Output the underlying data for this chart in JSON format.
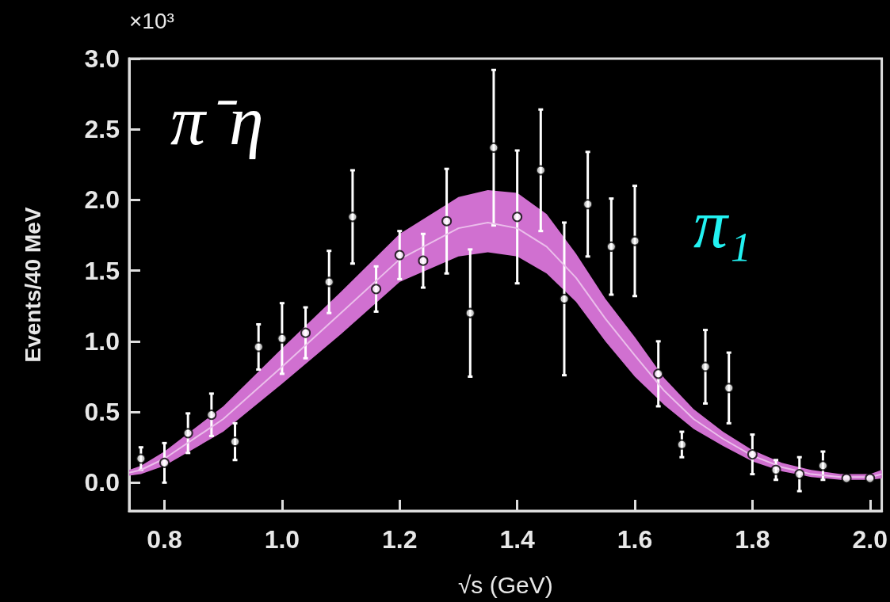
{
  "chart_data": {
    "type": "scatter",
    "xlabel": "√s (GeV)",
    "ylabel": "Events/40 MeV",
    "annotations": [
      "×10³",
      "π⁻η",
      "π₁"
    ],
    "xlim": [
      0.74,
      2.02
    ],
    "xticks": [
      0.8,
      {
        "value": 1,
        "label": "1.0"
      },
      1.2,
      1.4,
      1.6,
      1.8,
      {
        "value": 2,
        "label": "2.0"
      }
    ],
    "ylim": [
      -0.2,
      3.0
    ],
    "yticks": [
      {
        "value": 0,
        "label": "0.0"
      },
      0.5,
      {
        "value": 1,
        "label": "1.0"
      },
      1.5,
      {
        "value": 2,
        "label": "2.0"
      },
      2.5,
      {
        "value": 3,
        "label": "3.0"
      }
    ],
    "series": [
      {
        "type": "line",
        "color": "#ebbeeb",
        "marker": "none",
        "x": [
          0.74,
          0.76,
          0.8,
          0.9,
          1.0,
          1.1,
          1.2,
          1.3,
          1.35,
          1.4,
          1.45,
          1.5,
          1.55,
          1.6,
          1.65,
          1.7,
          1.75,
          1.8,
          1.85,
          1.9,
          1.95,
          2.0,
          2.02
        ],
        "values": [
          0.07,
          0.09,
          0.17,
          0.45,
          0.82,
          1.2,
          1.58,
          1.8,
          1.84,
          1.8,
          1.67,
          1.45,
          1.16,
          0.9,
          0.65,
          0.45,
          0.31,
          0.19,
          0.11,
          0.06,
          0.04,
          0.04,
          0.06
        ],
        "lower": [
          0.05,
          0.06,
          0.12,
          0.36,
          0.7,
          1.05,
          1.42,
          1.6,
          1.63,
          1.6,
          1.48,
          1.28,
          1.0,
          0.75,
          0.55,
          0.38,
          0.26,
          0.15,
          0.08,
          0.04,
          0.02,
          0.02,
          0.03
        ],
        "upper": [
          0.09,
          0.12,
          0.22,
          0.54,
          0.95,
          1.35,
          1.76,
          2.02,
          2.07,
          2.05,
          1.9,
          1.62,
          1.3,
          1.03,
          0.74,
          0.52,
          0.36,
          0.23,
          0.14,
          0.09,
          0.06,
          0.06,
          0.09
        ]
      },
      {
        "color": "#ffffff",
        "marker": "circle",
        "x": [
          0.76,
          0.8,
          0.84,
          0.88,
          0.92,
          0.96,
          1.0,
          1.04,
          1.08,
          1.12,
          1.16,
          1.2,
          1.24,
          1.28,
          1.32,
          1.36,
          1.4,
          1.44,
          1.48,
          1.52,
          1.56,
          1.6,
          1.64,
          1.68,
          1.72,
          1.76,
          1.8,
          1.84,
          1.88,
          1.92,
          1.96,
          2.0
        ],
        "values": [
          0.17,
          0.14,
          0.35,
          0.48,
          0.29,
          0.96,
          1.02,
          1.06,
          1.42,
          1.88,
          1.37,
          1.61,
          1.57,
          1.85,
          1.2,
          2.37,
          1.88,
          2.21,
          1.3,
          1.97,
          1.67,
          1.71,
          0.77,
          0.27,
          0.82,
          0.67,
          0.2,
          0.09,
          0.06,
          0.12,
          0.03,
          0.03
        ],
        "errors": [
          0.08,
          0.14,
          0.14,
          0.15,
          0.13,
          0.16,
          0.25,
          0.18,
          0.22,
          0.33,
          0.16,
          0.17,
          0.19,
          0.37,
          0.45,
          0.55,
          0.47,
          0.43,
          0.54,
          0.37,
          0.34,
          0.39,
          0.23,
          0.09,
          0.26,
          0.25,
          0.14,
          0.07,
          0.12,
          0.1,
          null,
          null
        ]
      }
    ]
  }
}
